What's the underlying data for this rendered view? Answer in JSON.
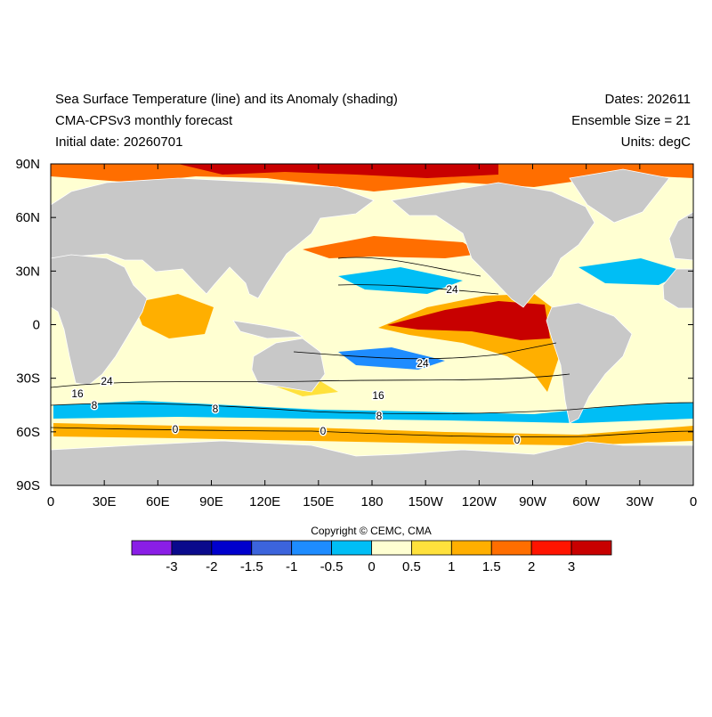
{
  "header": {
    "left": [
      "Sea Surface Temperature (line) and its Anomaly (shading)",
      "CMA-CPSv3 monthly forecast",
      "Initial date: 20260701"
    ],
    "right": [
      "Dates: 202611",
      "Ensemble Size = 21",
      "Units: degC"
    ]
  },
  "map": {
    "lat_labels": [
      "90N",
      "60N",
      "30N",
      "0",
      "30S",
      "60S",
      "90S"
    ],
    "lon_labels": [
      "0",
      "30E",
      "60E",
      "90E",
      "120E",
      "150E",
      "180",
      "150W",
      "120W",
      "90W",
      "60W",
      "30W",
      "0"
    ],
    "contour_labels": [
      "24",
      "24",
      "16",
      "8",
      "8",
      "8",
      "16",
      "24",
      "0",
      "0",
      "0"
    ]
  },
  "copyright": "Copyright © CEMC, CMA",
  "colorbar": {
    "colors": [
      "#8a1ee6",
      "#0a0a8c",
      "#0000cd",
      "#3c64dc",
      "#1e8cff",
      "#00bef5",
      "#ffffd2",
      "#ffe13c",
      "#ffaf00",
      "#ff6e00",
      "#ff1400",
      "#c80000"
    ],
    "labels": [
      "-3",
      "-2",
      "-1.5",
      "-1",
      "-0.5",
      "0",
      "0.5",
      "1",
      "1.5",
      "2",
      "3"
    ]
  }
}
